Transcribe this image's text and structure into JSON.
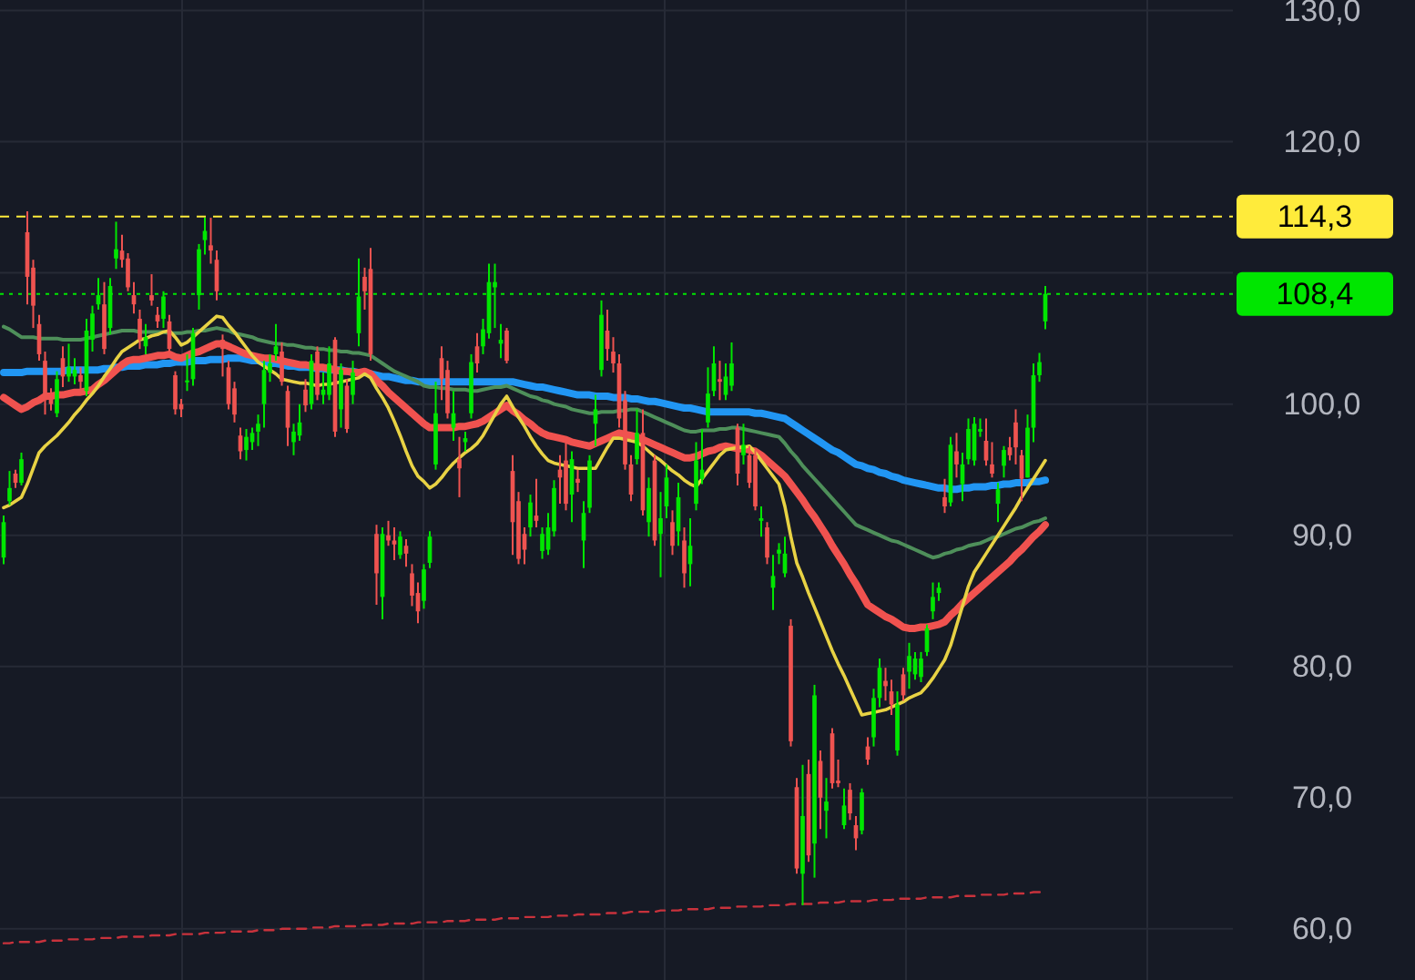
{
  "chart_data": {
    "type": "candlestick",
    "categories": [
      null,
      null,
      null,
      null,
      null,
      null,
      null,
      null,
      null,
      null,
      null,
      null,
      null,
      null,
      null,
      null,
      null,
      null,
      null,
      null,
      null,
      null,
      null,
      null,
      null,
      null,
      null,
      null,
      null,
      null,
      null,
      null,
      null,
      null,
      null,
      null,
      null,
      null,
      null,
      null,
      null,
      null,
      null,
      null,
      null,
      null,
      null,
      null,
      null,
      null,
      null,
      null,
      null,
      null,
      null,
      null,
      null,
      null,
      null,
      null,
      null,
      null,
      null,
      null,
      null,
      null,
      null,
      null,
      null,
      null,
      null,
      null,
      null,
      null,
      null,
      null,
      null,
      null,
      null,
      null,
      null,
      null,
      null,
      null,
      null,
      null,
      null,
      null,
      null,
      null,
      null,
      null,
      null,
      null,
      null,
      null,
      null,
      null,
      null,
      null,
      null,
      null,
      null,
      null,
      null,
      null,
      null,
      null,
      null,
      null,
      null,
      null,
      null,
      null,
      null,
      null,
      null,
      null,
      null,
      null,
      null,
      null,
      null,
      null,
      null,
      null,
      null,
      null,
      null,
      null,
      null,
      null,
      null,
      null,
      null,
      null,
      null,
      null,
      null,
      null,
      null,
      null,
      null,
      null,
      null,
      null,
      null,
      null,
      null,
      null,
      null,
      null,
      null,
      null,
      null,
      null,
      null,
      null,
      null,
      null,
      null,
      null,
      null,
      null,
      null,
      null,
      null,
      null,
      null,
      null,
      null,
      null,
      null,
      null,
      null,
      null,
      null
    ],
    "ohlc": [
      [
        88.3,
        91.5,
        87.8,
        91.0
      ],
      [
        92.6,
        94.9,
        92.3,
        93.6
      ],
      [
        94.7,
        95.0,
        93.6,
        94.0
      ],
      [
        94.0,
        96.3,
        93.8,
        95.8
      ],
      [
        113.1,
        114.7,
        107.6,
        109.7
      ],
      [
        110.4,
        111.0,
        105.8,
        107.5
      ],
      [
        106.1,
        106.8,
        103.3,
        103.8
      ],
      [
        103.3,
        104.0,
        99.2,
        100.3
      ],
      [
        100.7,
        101.2,
        99.5,
        100.0
      ],
      [
        99.3,
        102.5,
        99.0,
        101.9
      ],
      [
        103.5,
        104.4,
        101.3,
        102.1
      ],
      [
        102.1,
        104.6,
        101.7,
        102.8
      ],
      [
        102.1,
        103.5,
        101.5,
        102.6
      ],
      [
        102.2,
        102.8,
        101.0,
        101.7
      ],
      [
        101.0,
        106.5,
        100.6,
        105.6
      ],
      [
        104.9,
        107.5,
        104.0,
        106.9
      ],
      [
        107.6,
        109.6,
        107.2,
        108.3
      ],
      [
        107.6,
        109.3,
        103.8,
        104.2
      ],
      [
        105.8,
        109.6,
        105.3,
        109.0
      ],
      [
        111.1,
        113.9,
        110.3,
        111.8
      ],
      [
        111.7,
        112.9,
        110.4,
        111.0
      ],
      [
        111.1,
        111.5,
        108.6,
        108.9
      ],
      [
        108.3,
        109.3,
        106.9,
        107.6
      ],
      [
        106.5,
        107.2,
        104.2,
        104.9
      ],
      [
        104.4,
        106.1,
        103.8,
        105.1
      ],
      [
        108.3,
        109.9,
        107.5,
        107.9
      ],
      [
        106.8,
        107.4,
        105.8,
        106.3
      ],
      [
        106.5,
        108.6,
        105.8,
        108.2
      ],
      [
        106.3,
        106.8,
        103.6,
        104.2
      ],
      [
        102.2,
        102.5,
        99.2,
        99.6
      ],
      [
        100.0,
        100.4,
        99.0,
        99.6
      ],
      [
        101.7,
        103.8,
        101.0,
        101.8
      ],
      [
        101.9,
        105.8,
        101.4,
        105.4
      ],
      [
        108.3,
        112.2,
        107.2,
        111.8
      ],
      [
        112.5,
        114.2,
        111.4,
        113.2
      ],
      [
        112.1,
        114.2,
        110.7,
        111.7
      ],
      [
        111.0,
        111.7,
        107.9,
        108.6
      ],
      [
        104.9,
        105.3,
        102.1,
        104.2
      ],
      [
        102.8,
        103.3,
        99.6,
        100.0
      ],
      [
        101.2,
        101.7,
        98.6,
        99.2
      ],
      [
        97.6,
        98.2,
        95.8,
        96.4
      ],
      [
        96.5,
        98.1,
        95.7,
        97.5
      ],
      [
        97.1,
        98.2,
        96.5,
        97.8
      ],
      [
        97.9,
        99.2,
        96.8,
        98.5
      ],
      [
        100.0,
        103.3,
        98.2,
        102.6
      ],
      [
        102.4,
        103.8,
        101.7,
        103.1
      ],
      [
        103.8,
        106.1,
        103.3,
        104.4
      ],
      [
        104.0,
        104.7,
        101.4,
        101.7
      ],
      [
        101.0,
        101.4,
        96.8,
        98.2
      ],
      [
        97.1,
        98.5,
        96.1,
        97.9
      ],
      [
        97.6,
        100.0,
        97.2,
        98.6
      ],
      [
        101.1,
        101.9,
        99.4,
        99.9
      ],
      [
        100.0,
        103.8,
        99.6,
        103.3
      ],
      [
        104.0,
        104.4,
        100.3,
        100.7
      ],
      [
        100.7,
        102.4,
        100.0,
        101.1
      ],
      [
        100.7,
        104.4,
        100.3,
        103.1
      ],
      [
        104.9,
        105.1,
        97.5,
        97.9
      ],
      [
        99.6,
        103.1,
        98.2,
        102.6
      ],
      [
        101.4,
        101.9,
        97.8,
        98.1
      ],
      [
        100.7,
        103.3,
        100.0,
        102.4
      ],
      [
        105.4,
        111.1,
        104.4,
        108.2
      ],
      [
        109.7,
        110.4,
        107.2,
        108.6
      ],
      [
        110.3,
        111.9,
        103.3,
        103.8
      ],
      [
        90.1,
        90.8,
        84.7,
        87.1
      ],
      [
        85.3,
        90.6,
        83.6,
        90.1
      ],
      [
        90.0,
        91.1,
        89.2,
        89.6
      ],
      [
        89.6,
        90.6,
        88.1,
        89.3
      ],
      [
        88.5,
        90.3,
        88.2,
        89.9
      ],
      [
        89.2,
        89.7,
        87.6,
        88.6
      ],
      [
        87.1,
        87.8,
        84.6,
        85.4
      ],
      [
        85.6,
        86.4,
        83.3,
        84.2
      ],
      [
        85.0,
        87.8,
        84.4,
        87.4
      ],
      [
        87.9,
        90.3,
        87.5,
        89.9
      ],
      [
        95.4,
        101.7,
        95.0,
        99.3
      ],
      [
        103.5,
        104.4,
        100.3,
        101.9
      ],
      [
        102.6,
        103.3,
        98.9,
        99.3
      ],
      [
        98.2,
        101.0,
        97.2,
        99.3
      ],
      [
        95.8,
        97.5,
        92.9,
        95.1
      ],
      [
        97.1,
        97.9,
        96.4,
        97.4
      ],
      [
        99.3,
        103.8,
        98.9,
        103.2
      ],
      [
        104.4,
        105.4,
        102.4,
        103.1
      ],
      [
        104.4,
        106.5,
        103.8,
        105.7
      ],
      [
        105.4,
        110.7,
        105.0,
        109.3
      ],
      [
        108.9,
        110.7,
        105.8,
        109.3
      ],
      [
        104.6,
        106.1,
        103.5,
        104.9
      ],
      [
        105.6,
        105.8,
        103.1,
        103.3
      ],
      [
        94.9,
        96.1,
        88.5,
        91.0
      ],
      [
        92.6,
        93.3,
        87.8,
        88.2
      ],
      [
        90.1,
        90.6,
        87.8,
        88.9
      ],
      [
        90.6,
        93.1,
        89.9,
        92.5
      ],
      [
        91.5,
        94.3,
        90.6,
        91.1
      ],
      [
        88.8,
        90.6,
        88.2,
        90.1
      ],
      [
        88.9,
        91.7,
        88.5,
        90.6
      ],
      [
        90.3,
        94.2,
        89.9,
        93.6
      ],
      [
        95.0,
        96.1,
        92.4,
        94.4
      ],
      [
        95.7,
        97.1,
        91.9,
        92.4
      ],
      [
        93.1,
        96.4,
        91.0,
        95.8
      ],
      [
        94.3,
        95.0,
        93.3,
        94.0
      ],
      [
        89.6,
        92.6,
        87.5,
        91.7
      ],
      [
        92.1,
        96.1,
        91.7,
        95.7
      ],
      [
        98.5,
        100.7,
        96.8,
        99.6
      ],
      [
        102.6,
        107.9,
        102.1,
        106.8
      ],
      [
        105.6,
        107.2,
        103.3,
        104.2
      ],
      [
        104.0,
        105.1,
        102.4,
        103.1
      ],
      [
        103.1,
        103.8,
        98.2,
        98.9
      ],
      [
        100.3,
        101.0,
        95.0,
        95.4
      ],
      [
        95.4,
        96.1,
        92.6,
        93.1
      ],
      [
        95.8,
        99.6,
        95.4,
        97.8
      ],
      [
        97.8,
        99.6,
        91.5,
        91.9
      ],
      [
        91.0,
        94.4,
        89.9,
        93.6
      ],
      [
        95.7,
        96.1,
        89.2,
        89.6
      ],
      [
        90.1,
        93.3,
        86.8,
        91.3
      ],
      [
        92.2,
        95.4,
        91.3,
        94.4
      ],
      [
        91.0,
        91.9,
        88.5,
        89.2
      ],
      [
        90.3,
        94.0,
        89.2,
        92.9
      ],
      [
        89.6,
        90.6,
        86.0,
        87.1
      ],
      [
        87.8,
        91.3,
        86.1,
        89.2
      ],
      [
        92.4,
        97.1,
        91.9,
        95.7
      ],
      [
        94.3,
        98.1,
        93.9,
        95.0
      ],
      [
        98.6,
        102.8,
        98.2,
        100.8
      ],
      [
        101.0,
        104.4,
        100.6,
        103.1
      ],
      [
        101.9,
        103.3,
        100.3,
        101.7
      ],
      [
        100.7,
        103.1,
        100.3,
        102.1
      ],
      [
        101.4,
        104.7,
        101.0,
        103.1
      ],
      [
        98.2,
        98.5,
        93.8,
        94.7
      ],
      [
        96.1,
        98.5,
        95.4,
        96.9
      ],
      [
        96.1,
        96.8,
        93.6,
        94.0
      ],
      [
        96.1,
        96.5,
        91.9,
        92.2
      ],
      [
        91.1,
        92.2,
        89.9,
        91.3
      ],
      [
        90.6,
        91.0,
        87.8,
        88.3
      ],
      [
        86.0,
        88.5,
        84.3,
        86.9
      ],
      [
        88.6,
        89.4,
        87.8,
        88.9
      ],
      [
        87.1,
        89.9,
        86.8,
        88.6
      ],
      [
        83.1,
        83.6,
        73.9,
        74.3
      ],
      [
        70.8,
        71.5,
        64.2,
        64.6
      ],
      [
        64.2,
        72.5,
        61.8,
        68.6
      ],
      [
        71.8,
        72.9,
        65.1,
        65.6
      ],
      [
        66.5,
        78.6,
        63.9,
        77.8
      ],
      [
        72.8,
        73.6,
        67.6,
        70.0
      ],
      [
        69.0,
        71.5,
        66.9,
        69.7
      ],
      [
        74.9,
        75.3,
        70.7,
        71.1
      ],
      [
        71.3,
        72.9,
        70.8,
        71.1
      ],
      [
        67.9,
        70.7,
        67.6,
        69.4
      ],
      [
        70.6,
        71.1,
        68.3,
        68.8
      ],
      [
        67.9,
        68.6,
        66.0,
        66.9
      ],
      [
        67.5,
        70.7,
        67.2,
        70.4
      ],
      [
        73.9,
        74.6,
        72.5,
        72.9
      ],
      [
        74.6,
        78.3,
        73.9,
        77.6
      ],
      [
        77.6,
        80.6,
        76.9,
        79.9
      ],
      [
        78.9,
        79.9,
        77.4,
        78.5
      ],
      [
        78.1,
        79.0,
        76.3,
        77.1
      ],
      [
        73.6,
        78.1,
        73.2,
        77.1
      ],
      [
        79.4,
        79.9,
        77.4,
        77.8
      ],
      [
        79.6,
        81.8,
        78.3,
        80.8
      ],
      [
        79.4,
        81.1,
        79.0,
        80.6
      ],
      [
        79.2,
        81.1,
        78.8,
        80.6
      ],
      [
        81.1,
        83.2,
        80.8,
        82.9
      ],
      [
        84.2,
        86.4,
        83.6,
        85.3
      ],
      [
        85.6,
        86.4,
        85.0,
        86.0
      ],
      [
        92.9,
        94.3,
        91.7,
        92.2
      ],
      [
        92.5,
        97.5,
        92.2,
        96.9
      ],
      [
        96.4,
        97.8,
        94.4,
        95.4
      ],
      [
        93.9,
        96.3,
        92.6,
        95.4
      ],
      [
        95.8,
        98.9,
        95.4,
        98.1
      ],
      [
        95.7,
        99.0,
        95.3,
        98.5
      ],
      [
        97.9,
        98.9,
        97.5,
        98.1
      ],
      [
        97.2,
        98.9,
        95.3,
        95.7
      ],
      [
        95.4,
        97.1,
        94.4,
        94.7
      ],
      [
        92.4,
        94.0,
        91.0,
        93.5
      ],
      [
        95.3,
        96.8,
        94.4,
        96.5
      ],
      [
        96.7,
        97.5,
        95.7,
        96.1
      ],
      [
        98.6,
        99.6,
        95.4,
        96.7
      ],
      [
        96.1,
        96.5,
        92.6,
        94.3
      ],
      [
        94.4,
        99.2,
        94.4,
        98.2
      ],
      [
        98.2,
        103.1,
        97.1,
        102.2
      ],
      [
        102.2,
        103.9,
        101.7,
        103.2
      ],
      [
        106.3,
        109.0,
        105.7,
        108.4
      ]
    ],
    "colors": [
      "#00e600",
      "#00e600",
      "#ef5350",
      "#00e600",
      "#ef5350",
      "#ef5350",
      "#ef5350",
      "#ef5350",
      "#ef5350",
      "#00e600",
      "#ef5350",
      "#00e600",
      "#00e600",
      "#ef5350",
      "#00e600",
      "#00e600",
      "#00e600",
      "#ef5350",
      "#00e600",
      "#00e600",
      "#ef5350",
      "#ef5350",
      "#ef5350",
      "#ef5350",
      "#00e600",
      "#ef5350",
      "#ef5350",
      "#00e600",
      "#ef5350",
      "#ef5350",
      "#ef5350",
      "#00e600",
      "#00e600",
      "#00e600",
      "#00e600",
      "#ef5350",
      "#ef5350",
      "#ef5350",
      "#ef5350",
      "#ef5350",
      "#ef5350",
      "#00e600",
      "#00e600",
      "#00e600",
      "#00e600",
      "#00e600",
      "#00e600",
      "#ef5350",
      "#ef5350",
      "#00e600",
      "#00e600",
      "#ef5350",
      "#00e600",
      "#ef5350",
      "#00e600",
      "#00e600",
      "#ef5350",
      "#00e600",
      "#ef5350",
      "#00e600",
      "#00e600",
      "#ef5350",
      "#ef5350",
      "#ef5350",
      "#00e600",
      "#ef5350",
      "#ef5350",
      "#00e600",
      "#ef5350",
      "#ef5350",
      "#ef5350",
      "#00e600",
      "#00e600",
      "#00e600",
      "#ef5350",
      "#ef5350",
      "#00e600",
      "#ef5350",
      "#00e600",
      "#00e600",
      "#ef5350",
      "#00e600",
      "#00e600",
      "#00e600",
      "#00e600",
      "#ef5350",
      "#ef5350",
      "#ef5350",
      "#ef5350",
      "#00e600",
      "#ef5350",
      "#00e600",
      "#00e600",
      "#00e600",
      "#ef5350",
      "#ef5350",
      "#00e600",
      "#ef5350",
      "#00e600",
      "#00e600",
      "#00e600",
      "#00e600",
      "#ef5350",
      "#ef5350",
      "#ef5350",
      "#ef5350",
      "#ef5350",
      "#00e600",
      "#ef5350",
      "#00e600",
      "#ef5350",
      "#00e600",
      "#00e600",
      "#ef5350",
      "#00e600",
      "#ef5350",
      "#00e600",
      "#00e600",
      "#00e600",
      "#00e600",
      "#00e600",
      "#ef5350",
      "#00e600",
      "#00e600",
      "#ef5350",
      "#00e600",
      "#ef5350",
      "#ef5350",
      "#00e600",
      "#ef5350",
      "#00e600",
      "#00e600",
      "#00e600",
      "#ef5350",
      "#ef5350",
      "#00e600",
      "#ef5350",
      "#00e600",
      "#ef5350",
      "#00e600",
      "#ef5350",
      "#ef5350",
      "#00e600",
      "#ef5350",
      "#ef5350",
      "#00e600",
      "#ef5350",
      "#00e600",
      "#00e600",
      "#ef5350",
      "#ef5350",
      "#00e600",
      "#ef5350",
      "#00e600",
      "#00e600",
      "#00e600",
      "#00e600",
      "#00e600",
      "#00e600",
      "#ef5350",
      "#00e600",
      "#ef5350",
      "#00e600",
      "#00e600",
      "#00e600",
      "#00e600",
      "#ef5350",
      "#ef5350",
      "#00e600",
      "#00e600",
      "#ef5350",
      "#ef5350",
      "#ef5350",
      "#00e600",
      "#00e600",
      "#00e600",
      "#00e600"
    ],
    "series": [
      {
        "type": "line",
        "color": "#2196f3",
        "values": [
          102.4,
          102.4,
          102.4,
          102.4,
          102.5,
          102.5,
          102.5,
          102.5,
          102.5,
          102.5,
          102.5,
          102.6,
          102.6,
          102.6,
          102.6,
          102.6,
          102.6,
          102.7,
          102.7,
          102.8,
          102.8,
          102.9,
          102.9,
          102.9,
          103.0,
          103.0,
          103.0,
          103.1,
          103.1,
          103.2,
          103.2,
          103.2,
          103.3,
          103.3,
          103.3,
          103.4,
          103.4,
          103.4,
          103.5,
          103.5,
          103.5,
          103.4,
          103.3,
          103.3,
          103.2,
          103.1,
          103.1,
          103.0,
          102.9,
          102.9,
          102.8,
          102.8,
          102.8,
          102.7,
          102.7,
          102.6,
          102.6,
          102.6,
          102.5,
          102.5,
          102.4,
          102.4,
          102.3,
          102.2,
          102.1,
          102.1,
          102.0,
          101.9,
          101.8,
          101.8,
          101.7,
          101.7,
          101.7,
          101.7,
          101.7,
          101.7,
          101.7,
          101.7,
          101.7,
          101.7,
          101.7,
          101.7,
          101.7,
          101.7,
          101.7,
          101.7,
          101.7,
          101.6,
          101.5,
          101.4,
          101.3,
          101.3,
          101.2,
          101.1,
          101.0,
          100.9,
          100.8,
          100.7,
          100.7,
          100.7,
          100.6,
          100.6,
          100.6,
          100.5,
          100.5,
          100.5,
          100.4,
          100.4,
          100.3,
          100.2,
          100.2,
          100.1,
          100.0,
          99.9,
          99.8,
          99.7,
          99.7,
          99.6,
          99.5,
          99.4,
          99.4,
          99.4,
          99.4,
          99.4,
          99.4,
          99.4,
          99.4,
          99.3,
          99.3,
          99.2,
          99.1,
          99.0,
          98.9,
          98.6,
          98.3,
          98.0,
          97.7,
          97.4,
          97.1,
          96.8,
          96.5,
          96.3,
          96.0,
          95.7,
          95.4,
          95.3,
          95.1,
          95.0,
          94.8,
          94.7,
          94.5,
          94.4,
          94.2,
          94.1,
          94.0,
          93.9,
          93.8,
          93.7,
          93.6,
          93.6,
          93.5,
          93.5,
          93.6,
          93.6,
          93.7,
          93.7,
          93.7,
          93.8,
          93.8,
          93.9,
          93.9,
          94.0,
          94.0,
          94.0,
          94.1,
          94.1,
          94.2
        ]
      },
      {
        "type": "line",
        "color": "#4e8f5a",
        "values": [
          105.9,
          105.7,
          105.4,
          105.1,
          105.1,
          105.1,
          105.0,
          105.0,
          105.0,
          105.0,
          104.9,
          104.9,
          104.9,
          104.9,
          105.0,
          105.1,
          105.2,
          105.3,
          105.4,
          105.5,
          105.6,
          105.6,
          105.6,
          105.5,
          105.5,
          105.5,
          105.5,
          105.5,
          105.4,
          105.4,
          105.4,
          105.5,
          105.5,
          105.6,
          105.6,
          105.7,
          105.8,
          105.7,
          105.6,
          105.4,
          105.3,
          105.2,
          105.1,
          104.9,
          104.8,
          104.7,
          104.6,
          104.6,
          104.5,
          104.5,
          104.4,
          104.3,
          104.3,
          104.2,
          104.2,
          104.1,
          104.1,
          104.0,
          104.0,
          103.9,
          103.9,
          103.8,
          103.7,
          103.4,
          103.1,
          102.8,
          102.5,
          102.3,
          102.1,
          101.9,
          101.7,
          101.4,
          101.3,
          101.3,
          101.2,
          101.2,
          101.1,
          101.1,
          101.1,
          101.0,
          101.0,
          101.1,
          101.2,
          101.3,
          101.3,
          101.4,
          101.2,
          101.0,
          100.8,
          100.6,
          100.5,
          100.3,
          100.2,
          100.0,
          99.9,
          99.8,
          99.6,
          99.5,
          99.4,
          99.3,
          99.3,
          99.4,
          99.4,
          99.4,
          99.5,
          99.5,
          99.6,
          99.6,
          99.4,
          99.2,
          99.0,
          98.8,
          98.6,
          98.4,
          98.2,
          98.0,
          97.9,
          97.9,
          98.0,
          98.0,
          98.0,
          98.1,
          98.1,
          98.2,
          98.2,
          98.1,
          98.0,
          97.9,
          97.8,
          97.7,
          97.6,
          97.5,
          97.0,
          96.4,
          95.9,
          95.3,
          94.8,
          94.3,
          93.8,
          93.3,
          92.8,
          92.3,
          91.8,
          91.3,
          90.8,
          90.6,
          90.4,
          90.2,
          90.0,
          89.8,
          89.6,
          89.5,
          89.3,
          89.1,
          88.9,
          88.7,
          88.5,
          88.3,
          88.4,
          88.6,
          88.7,
          88.9,
          89.0,
          89.2,
          89.3,
          89.4,
          89.6,
          89.8,
          89.9,
          90.1,
          90.3,
          90.5,
          90.6,
          90.8,
          91.0,
          91.1,
          91.3
        ]
      },
      {
        "type": "line",
        "color": "#f0524f",
        "values": [
          100.5,
          100.2,
          99.9,
          99.6,
          99.8,
          100.1,
          100.3,
          100.6,
          100.6,
          100.7,
          100.7,
          100.8,
          100.9,
          100.9,
          101.0,
          101.1,
          101.5,
          101.8,
          102.2,
          102.6,
          103.0,
          103.3,
          103.4,
          103.4,
          103.5,
          103.6,
          103.7,
          103.7,
          103.8,
          103.6,
          103.5,
          103.7,
          103.9,
          104.0,
          104.2,
          104.4,
          104.6,
          104.6,
          104.4,
          104.2,
          104.0,
          103.8,
          103.7,
          103.6,
          103.5,
          103.5,
          103.4,
          103.3,
          103.2,
          103.1,
          103.0,
          103.0,
          102.9,
          102.8,
          102.8,
          102.7,
          102.6,
          102.5,
          102.5,
          102.4,
          102.4,
          102.5,
          102.3,
          101.8,
          101.4,
          100.9,
          100.5,
          100.1,
          99.7,
          99.3,
          98.9,
          98.5,
          98.2,
          98.2,
          98.2,
          98.2,
          98.2,
          98.3,
          98.3,
          98.4,
          98.5,
          98.7,
          99.0,
          99.3,
          99.6,
          99.9,
          99.5,
          99.2,
          98.8,
          98.5,
          98.1,
          97.8,
          97.6,
          97.5,
          97.4,
          97.3,
          97.1,
          97.0,
          96.9,
          96.8,
          97.0,
          97.2,
          97.4,
          97.6,
          97.8,
          97.7,
          97.6,
          97.5,
          97.3,
          97.1,
          96.9,
          96.7,
          96.5,
          96.3,
          96.1,
          95.9,
          95.9,
          96.0,
          96.2,
          96.4,
          96.5,
          96.7,
          96.8,
          96.7,
          96.6,
          96.6,
          96.5,
          96.4,
          96.1,
          95.7,
          95.3,
          94.9,
          94.5,
          93.9,
          93.3,
          92.7,
          92.0,
          91.4,
          90.7,
          90.0,
          89.2,
          88.5,
          87.8,
          87.0,
          86.3,
          85.5,
          84.7,
          84.4,
          84.1,
          83.8,
          83.6,
          83.3,
          83.0,
          82.9,
          82.9,
          83.0,
          83.0,
          83.1,
          83.2,
          83.4,
          83.9,
          84.3,
          84.8,
          85.2,
          85.6,
          86.0,
          86.4,
          86.8,
          87.2,
          87.6,
          88.0,
          88.5,
          88.9,
          89.4,
          89.9,
          90.3,
          90.8
        ]
      },
      {
        "type": "line",
        "color": "#e8d244",
        "values": [
          92.1,
          92.3,
          92.6,
          92.9,
          93.9,
          95.1,
          96.3,
          96.8,
          97.2,
          97.6,
          98.1,
          98.6,
          99.2,
          99.7,
          100.3,
          100.8,
          101.4,
          102.1,
          102.7,
          103.4,
          104.0,
          104.3,
          104.6,
          104.9,
          105.0,
          105.2,
          105.3,
          105.5,
          105.6,
          105.1,
          104.5,
          104.7,
          105.1,
          105.5,
          105.9,
          106.3,
          106.7,
          106.6,
          106.0,
          105.5,
          104.9,
          104.3,
          103.7,
          103.2,
          102.9,
          102.6,
          102.3,
          101.9,
          101.8,
          101.7,
          101.6,
          101.6,
          101.5,
          101.4,
          101.5,
          101.5,
          101.6,
          101.7,
          101.8,
          101.9,
          102.0,
          102.3,
          102.0,
          101.2,
          100.5,
          99.7,
          98.7,
          97.6,
          96.4,
          95.3,
          94.5,
          94.1,
          93.6,
          93.9,
          94.4,
          95.0,
          95.5,
          95.9,
          96.3,
          96.6,
          97.0,
          97.6,
          98.4,
          99.2,
          100.0,
          100.6,
          99.8,
          99.0,
          98.3,
          97.5,
          96.8,
          96.2,
          95.7,
          95.5,
          95.4,
          95.3,
          95.2,
          95.1,
          95.1,
          95.1,
          95.1,
          95.9,
          96.7,
          97.4,
          97.4,
          97.3,
          97.2,
          97.1,
          96.8,
          96.4,
          96.0,
          95.7,
          95.3,
          94.9,
          94.6,
          94.2,
          93.9,
          93.7,
          94.3,
          94.9,
          95.5,
          96.1,
          96.5,
          96.6,
          96.7,
          96.7,
          96.8,
          96.3,
          95.7,
          95.1,
          94.5,
          93.9,
          92.2,
          89.9,
          87.9,
          86.8,
          85.6,
          84.5,
          83.4,
          82.3,
          81.2,
          80.2,
          79.3,
          78.3,
          77.3,
          76.3,
          76.4,
          76.5,
          76.6,
          76.7,
          76.9,
          77.1,
          77.3,
          77.6,
          77.8,
          78.0,
          78.5,
          79.1,
          79.8,
          80.5,
          81.6,
          83.1,
          84.6,
          86.1,
          87.2,
          87.9,
          88.6,
          89.3,
          90.0,
          90.7,
          91.4,
          92.1,
          92.9,
          93.6,
          94.3,
          95.0,
          95.7
        ]
      },
      {
        "type": "line",
        "color": "#c8323c",
        "line_style": "dashed",
        "values": [
          58.9,
          58.9,
          59.0,
          59.0,
          59.0,
          59.0,
          59.0,
          59.1,
          59.1,
          59.1,
          59.1,
          59.2,
          59.2,
          59.2,
          59.2,
          59.2,
          59.3,
          59.3,
          59.3,
          59.3,
          59.4,
          59.4,
          59.4,
          59.4,
          59.4,
          59.5,
          59.5,
          59.5,
          59.5,
          59.6,
          59.6,
          59.6,
          59.6,
          59.6,
          59.7,
          59.7,
          59.7,
          59.7,
          59.8,
          59.8,
          59.8,
          59.8,
          59.8,
          59.9,
          59.9,
          59.9,
          59.9,
          60.0,
          60.0,
          60.0,
          60.0,
          60.0,
          60.1,
          60.1,
          60.1,
          60.1,
          60.2,
          60.2,
          60.2,
          60.2,
          60.2,
          60.3,
          60.3,
          60.3,
          60.3,
          60.4,
          60.4,
          60.4,
          60.4,
          60.4,
          60.5,
          60.5,
          60.5,
          60.5,
          60.5,
          60.6,
          60.6,
          60.6,
          60.6,
          60.7,
          60.7,
          60.7,
          60.7,
          60.7,
          60.8,
          60.8,
          60.8,
          60.8,
          60.9,
          60.9,
          60.9,
          60.9,
          60.9,
          61.0,
          61.0,
          61.0,
          61.0,
          61.1,
          61.1,
          61.1,
          61.1,
          61.1,
          61.2,
          61.2,
          61.2,
          61.2,
          61.3,
          61.3,
          61.3,
          61.3,
          61.3,
          61.4,
          61.4,
          61.4,
          61.4,
          61.5,
          61.5,
          61.5,
          61.5,
          61.5,
          61.6,
          61.6,
          61.6,
          61.6,
          61.7,
          61.7,
          61.7,
          61.7,
          61.7,
          61.8,
          61.8,
          61.8,
          61.8,
          61.9,
          61.9,
          61.9,
          61.9,
          61.9,
          62.0,
          62.0,
          62.0,
          62.0,
          62.1,
          62.1,
          62.1,
          62.1,
          62.1,
          62.2,
          62.2,
          62.2,
          62.2,
          62.3,
          62.3,
          62.3,
          62.3,
          62.3,
          62.4,
          62.4,
          62.4,
          62.4,
          62.4,
          62.5,
          62.5,
          62.5,
          62.5,
          62.6,
          62.6,
          62.6,
          62.6,
          62.6,
          62.7,
          62.7,
          62.7,
          62.7,
          62.8,
          62.8,
          62.8
        ]
      }
    ],
    "ylim": [
      56.1,
      130.8
    ],
    "yticks": [
      {
        "value": 60,
        "label": "60,0"
      },
      {
        "value": 70,
        "label": "70,0"
      },
      {
        "value": 80,
        "label": "80,0"
      },
      {
        "value": 90,
        "label": "90,0"
      },
      {
        "value": 100,
        "label": "100,0"
      },
      {
        "value": 110,
        "label": null
      },
      {
        "value": 120,
        "label": "120,0"
      },
      {
        "value": 130,
        "label": "130,0"
      }
    ],
    "ref_lines": [
      {
        "axis": "y",
        "value": 114.3,
        "label": "114,3",
        "color": "#ffeb3b",
        "line_style": "dashed"
      },
      {
        "axis": "y",
        "value": 108.4,
        "label": "108,4",
        "color": "#00e600",
        "line_style": "dotted"
      }
    ],
    "grid": true,
    "tick_labels": "y"
  }
}
